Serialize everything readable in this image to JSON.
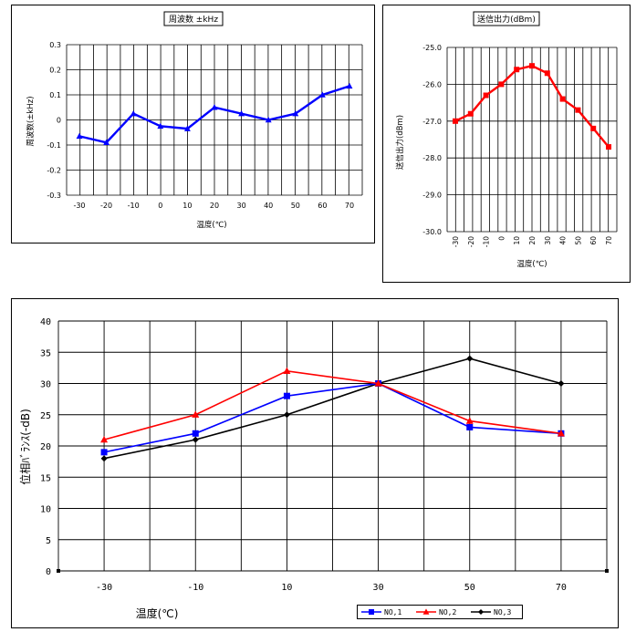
{
  "chart_data": [
    {
      "type": "line",
      "title": "周波数 ±kHz",
      "xlabel": "温度(℃)",
      "ylabel": "周波数(±kHz)",
      "x": [
        -30,
        -20,
        -10,
        0,
        10,
        20,
        30,
        40,
        50,
        60,
        70
      ],
      "xticks": [
        "-30",
        "-20",
        "-10",
        "0",
        "10",
        "20",
        "30",
        "40",
        "50",
        "60",
        "70"
      ],
      "yticks": [
        "0.3",
        "0.2",
        "0.1",
        "0",
        "-0.1",
        "-0.2",
        "-0.3"
      ],
      "ylim": [
        -0.3,
        0.3
      ],
      "grid": true,
      "series": [
        {
          "values": [
            -0.065,
            -0.09,
            0.025,
            -0.025,
            -0.035,
            0.05,
            0.025,
            0.0,
            0.025,
            0.1,
            0.135
          ],
          "color": "#0000ff",
          "marker": "triangle"
        }
      ]
    },
    {
      "type": "line",
      "title": "送信出力(dBm)",
      "xlabel": "温度(℃)",
      "ylabel": "送信出力(dBm)",
      "x": [
        -30,
        -20,
        -10,
        0,
        10,
        20,
        30,
        40,
        50,
        60,
        70
      ],
      "xticks": [
        "-30",
        "-20",
        "-10",
        "0",
        "10",
        "20",
        "30",
        "40",
        "50",
        "60",
        "70"
      ],
      "yticks": [
        "-25.0",
        "-26.0",
        "-27.0",
        "-28.0",
        "-29.0",
        "-30.0"
      ],
      "ylim": [
        -30.0,
        -25.0
      ],
      "grid": true,
      "series": [
        {
          "values": [
            -27.0,
            -26.8,
            -26.3,
            -26.0,
            -25.6,
            -25.5,
            -25.7,
            -26.4,
            -26.7,
            -27.2,
            -27.7
          ],
          "color": "#ff0000",
          "marker": "square"
        }
      ]
    },
    {
      "type": "line",
      "title": "",
      "xlabel": "温度(℃)",
      "ylabel": "位相ﾊﾞﾗﾝｽ(-dB)",
      "x": [
        -30,
        -10,
        10,
        30,
        50,
        70
      ],
      "xticks": [
        "-30",
        "-10",
        "10",
        "30",
        "50",
        "70"
      ],
      "yticks": [
        "40",
        "35",
        "30",
        "25",
        "20",
        "15",
        "10",
        "5",
        "0"
      ],
      "ylim": [
        0,
        40
      ],
      "grid": true,
      "legend": "bottom-right",
      "series": [
        {
          "name": "NO,1",
          "values": [
            19,
            22,
            28,
            30,
            23,
            22
          ],
          "color": "#0000ff",
          "marker": "square"
        },
        {
          "name": "NO,2",
          "values": [
            21,
            25,
            32,
            30,
            24,
            22
          ],
          "color": "#ff0000",
          "marker": "triangle"
        },
        {
          "name": "NO,3",
          "values": [
            18,
            21,
            25,
            30,
            34,
            30
          ],
          "color": "#000000",
          "marker": "diamond"
        }
      ]
    }
  ]
}
